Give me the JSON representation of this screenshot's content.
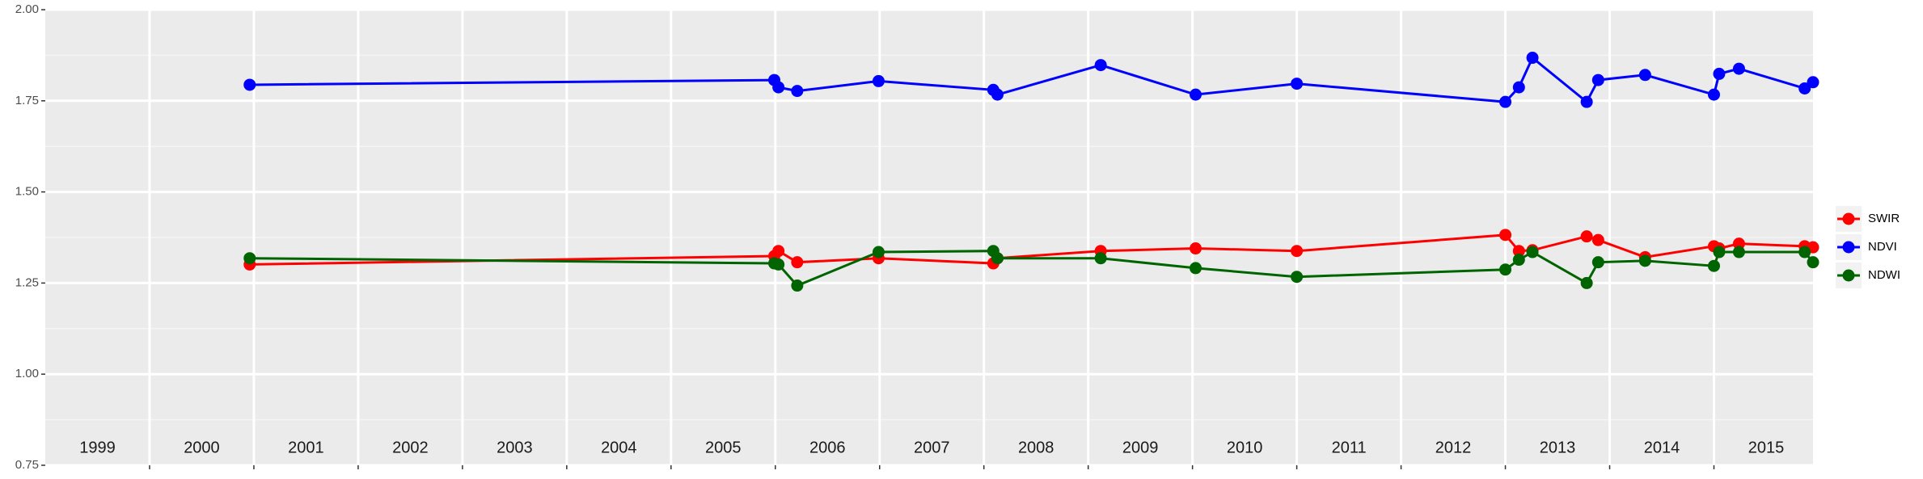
{
  "chart_data": {
    "type": "line",
    "x": [
      2000.96,
      2005.99,
      2006.03,
      2006.21,
      2006.99,
      2008.09,
      2008.13,
      2009.12,
      2010.03,
      2011.0,
      2013.0,
      2013.13,
      2013.26,
      2013.78,
      2013.89,
      2014.34,
      2015.0,
      2015.05,
      2015.24,
      2015.87,
      2015.95
    ],
    "series": [
      {
        "name": "SWIR",
        "color": "#ff0000",
        "values": [
          1.301,
          1.324,
          1.338,
          1.307,
          1.318,
          1.304,
          1.318,
          1.338,
          1.345,
          1.338,
          1.382,
          1.338,
          1.34,
          1.378,
          1.368,
          1.321,
          1.351,
          1.345,
          1.358,
          1.351,
          1.348
        ]
      },
      {
        "name": "NDVI",
        "color": "#0000ff",
        "values": [
          1.794,
          1.807,
          1.787,
          1.777,
          1.804,
          1.78,
          1.767,
          1.848,
          1.767,
          1.797,
          1.747,
          1.787,
          1.868,
          1.747,
          1.807,
          1.821,
          1.767,
          1.824,
          1.838,
          1.784,
          1.801
        ]
      },
      {
        "name": "NDWI",
        "color": "#006400",
        "values": [
          1.318,
          1.304,
          1.301,
          1.243,
          1.335,
          1.338,
          1.318,
          1.318,
          1.291,
          1.267,
          1.287,
          1.314,
          1.335,
          1.25,
          1.307,
          1.311,
          1.297,
          1.335,
          1.335,
          1.335,
          1.307
        ]
      }
    ],
    "xlim": [
      1999,
      2015.95
    ],
    "xticks": [
      {
        "value": 1999.5,
        "label": "1999"
      },
      {
        "value": 2000.5,
        "label": "2000"
      },
      {
        "value": 2001.5,
        "label": "2001"
      },
      {
        "value": 2002.5,
        "label": "2002"
      },
      {
        "value": 2003.5,
        "label": "2003"
      },
      {
        "value": 2004.5,
        "label": "2004"
      },
      {
        "value": 2005.5,
        "label": "2005"
      },
      {
        "value": 2006.5,
        "label": "2006"
      },
      {
        "value": 2007.5,
        "label": "2007"
      },
      {
        "value": 2008.5,
        "label": "2008"
      },
      {
        "value": 2009.5,
        "label": "2009"
      },
      {
        "value": 2010.5,
        "label": "2010"
      },
      {
        "value": 2011.5,
        "label": "2011"
      },
      {
        "value": 2012.5,
        "label": "2012"
      },
      {
        "value": 2013.5,
        "label": "2013"
      },
      {
        "value": 2014.5,
        "label": "2014"
      },
      {
        "value": 2015.5,
        "label": "2015"
      }
    ],
    "xgrid": [
      2000,
      2001,
      2002,
      2003,
      2004,
      2005,
      2006,
      2007,
      2008,
      2009,
      2010,
      2011,
      2012,
      2013,
      2014,
      2015
    ],
    "ylim": [
      0.75,
      2.0
    ],
    "yticks": [
      {
        "value": 0.75,
        "label": "0.75"
      },
      {
        "value": 1.0,
        "label": "1.00"
      },
      {
        "value": 1.25,
        "label": "1.25"
      },
      {
        "value": 1.5,
        "label": "1.50"
      },
      {
        "value": 1.75,
        "label": "1.75"
      },
      {
        "value": 2.0,
        "label": "2.00"
      }
    ],
    "grid": true,
    "legend": "right"
  }
}
